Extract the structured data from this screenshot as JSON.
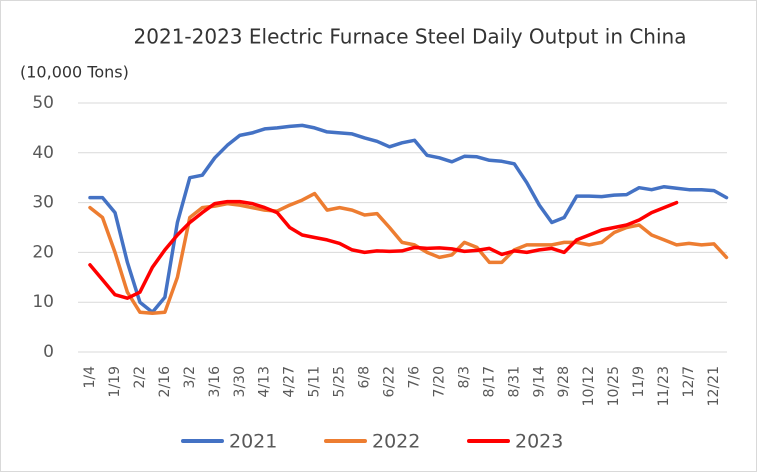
{
  "chart_data": {
    "type": "line",
    "title": "2021-2023  Electric Furnace Steel Daily Output in China",
    "y_label": "(10,000 Tons)",
    "categories": [
      "1/4",
      null,
      "1/19",
      null,
      "2/2",
      null,
      "2/16",
      null,
      "3/2",
      null,
      "3/16",
      null,
      "3/30",
      null,
      "4/13",
      null,
      "4/27",
      null,
      "5/11",
      null,
      "5/25",
      null,
      "6/8",
      null,
      "6/22",
      null,
      "7/6",
      null,
      "7/20",
      null,
      "8/3",
      null,
      "8/17",
      null,
      "8/31",
      null,
      "9/14",
      null,
      "9/28",
      null,
      "10/12",
      null,
      "10/25",
      null,
      "11/9",
      null,
      "11/23",
      null,
      "12/7",
      null,
      "12/21",
      null
    ],
    "series": [
      {
        "name": "2021",
        "color": "#4472c4",
        "values": [
          31,
          31,
          28,
          18,
          10,
          8,
          11,
          26,
          35,
          35.5,
          39,
          41.5,
          43.5,
          44,
          44.8,
          45,
          45.3,
          45.5,
          45,
          44.2,
          44,
          43.8,
          43,
          42.3,
          41.2,
          42,
          42.5,
          39.5,
          39,
          38.2,
          39.3,
          39.2,
          38.5,
          38.3,
          37.8,
          34,
          29.5,
          26,
          27,
          31.3,
          31.3,
          31.2,
          31.5,
          31.6,
          33,
          32.6,
          33.2,
          32.9,
          32.6,
          32.6,
          32.4,
          31
        ]
      },
      {
        "name": "2022",
        "color": "#ed7d31",
        "values": [
          29,
          27,
          20,
          12,
          8,
          7.8,
          8,
          15,
          27,
          29,
          29.3,
          29.8,
          29.5,
          29,
          28.5,
          28.3,
          29.5,
          30.5,
          31.8,
          28.5,
          29,
          28.5,
          27.5,
          27.8,
          25,
          22,
          21.5,
          20,
          19,
          19.5,
          22,
          21,
          18,
          18,
          20.5,
          21.5,
          21.5,
          21.5,
          22,
          22,
          21.5,
          22,
          24,
          25,
          25.5,
          23.5,
          22.5,
          21.5,
          21.8,
          21.5,
          21.7,
          19
        ]
      },
      {
        "name": "2023",
        "color": "#ff0000",
        "values": [
          17.5,
          14.5,
          11.5,
          10.8,
          12,
          17,
          20.5,
          23.5,
          26,
          28,
          29.8,
          30.2,
          30.2,
          29.8,
          29,
          28,
          25,
          23.5,
          23,
          22.5,
          21.8,
          20.5,
          20,
          20.3,
          20.2,
          20.3,
          21,
          20.8,
          20.9,
          20.7,
          20.2,
          20.4,
          20.8,
          19.6,
          20.3,
          20,
          20.5,
          20.8,
          20,
          22.5,
          23.5,
          24.5,
          25,
          25.5,
          26.5,
          28,
          29,
          30,
          null,
          null,
          null,
          null
        ]
      }
    ],
    "ylim": [
      0,
      50
    ],
    "yticks": [
      0,
      10,
      20,
      30,
      40,
      50
    ],
    "grid": true,
    "legend": "bottom"
  }
}
